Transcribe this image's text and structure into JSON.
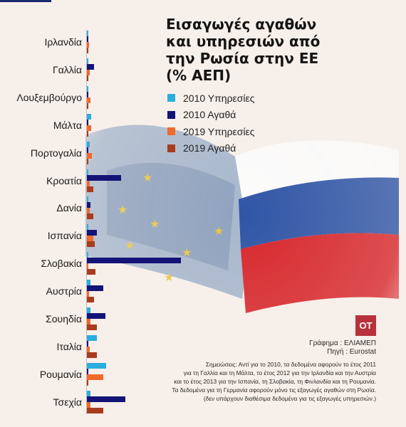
{
  "chart_data": {
    "type": "bar",
    "orientation": "horizontal",
    "title_lines": [
      "Εισαγωγές αγαθών",
      "και υπηρεσιών από",
      "την Ρωσία στην ΕΕ",
      "(% ΑΕΠ)"
    ],
    "categories": [
      "Ιρλανδία",
      "Γαλλία",
      "Λουξεμβούργο",
      "Μάλτα",
      "Πορτογαλία",
      "Κροατία",
      "Δανία",
      "Ισπανία",
      "Σλοβακία",
      "Αυστρία",
      "Σουηδία",
      "Ιταλία",
      "Ρουμανία",
      "Τσεχία"
    ],
    "series": [
      {
        "name": "2010 Υπηρεσίες",
        "color": "#29aee0",
        "values": [
          0.15,
          0.15,
          0.05,
          0.4,
          0.25,
          0.1,
          0.15,
          0.1,
          0.05,
          0.3,
          0.3,
          0.9,
          1.8,
          0.35
        ]
      },
      {
        "name": "2010 Αγαθά",
        "color": "#141478",
        "values": [
          0.15,
          0.65,
          0.05,
          0.05,
          0.15,
          3.2,
          0.35,
          0.9,
          8.8,
          1.5,
          1.7,
          0.05,
          0.05,
          3.6
        ]
      },
      {
        "name": "2019 Υπηρεσίες",
        "color": "#f06a2c",
        "values": [
          0.2,
          0.25,
          0.35,
          0.4,
          0.45,
          0.25,
          0.25,
          0.6,
          0.1,
          0.2,
          0.3,
          0.25,
          1.5,
          0.3
        ]
      },
      {
        "name": "2019 Αγαθά",
        "color": "#a83c1c",
        "values": [
          0.1,
          0.1,
          0.1,
          0.1,
          0.15,
          0.6,
          0.6,
          0.7,
          0.8,
          0.65,
          0.9,
          0.9,
          0.05,
          1.5
        ]
      }
    ],
    "xlim": [
      0,
      10
    ],
    "grid": false,
    "legend_position": "right"
  },
  "logo_text": "OT",
  "credits": [
    "Γράφημα : ΕΛΙΑΜΕΠ",
    "Πηγή : Eurostat"
  ],
  "notes": [
    "Σημειώσεις: Αντί για το 2010, τα δεδομένα αφορούν το έτος 2011",
    "για τη Γαλλία και τη Μάλτα, το έτος 2012 για την Ιρλανδία και την Αυστρία",
    "και το έτος 2013 για την Ισπανία, τη Σλοβακία, τη Φινλανδία και τη Ρουμανία.",
    "Τα δεδομένα για τη Γερμανία αφορούν μόνο τις εξαγωγές αγαθών στη Ρωσία.",
    "(δεν υπάρχουν διαθέσιμα δεδομένα για τις εξαγωγές υπηρεσιών.)"
  ]
}
